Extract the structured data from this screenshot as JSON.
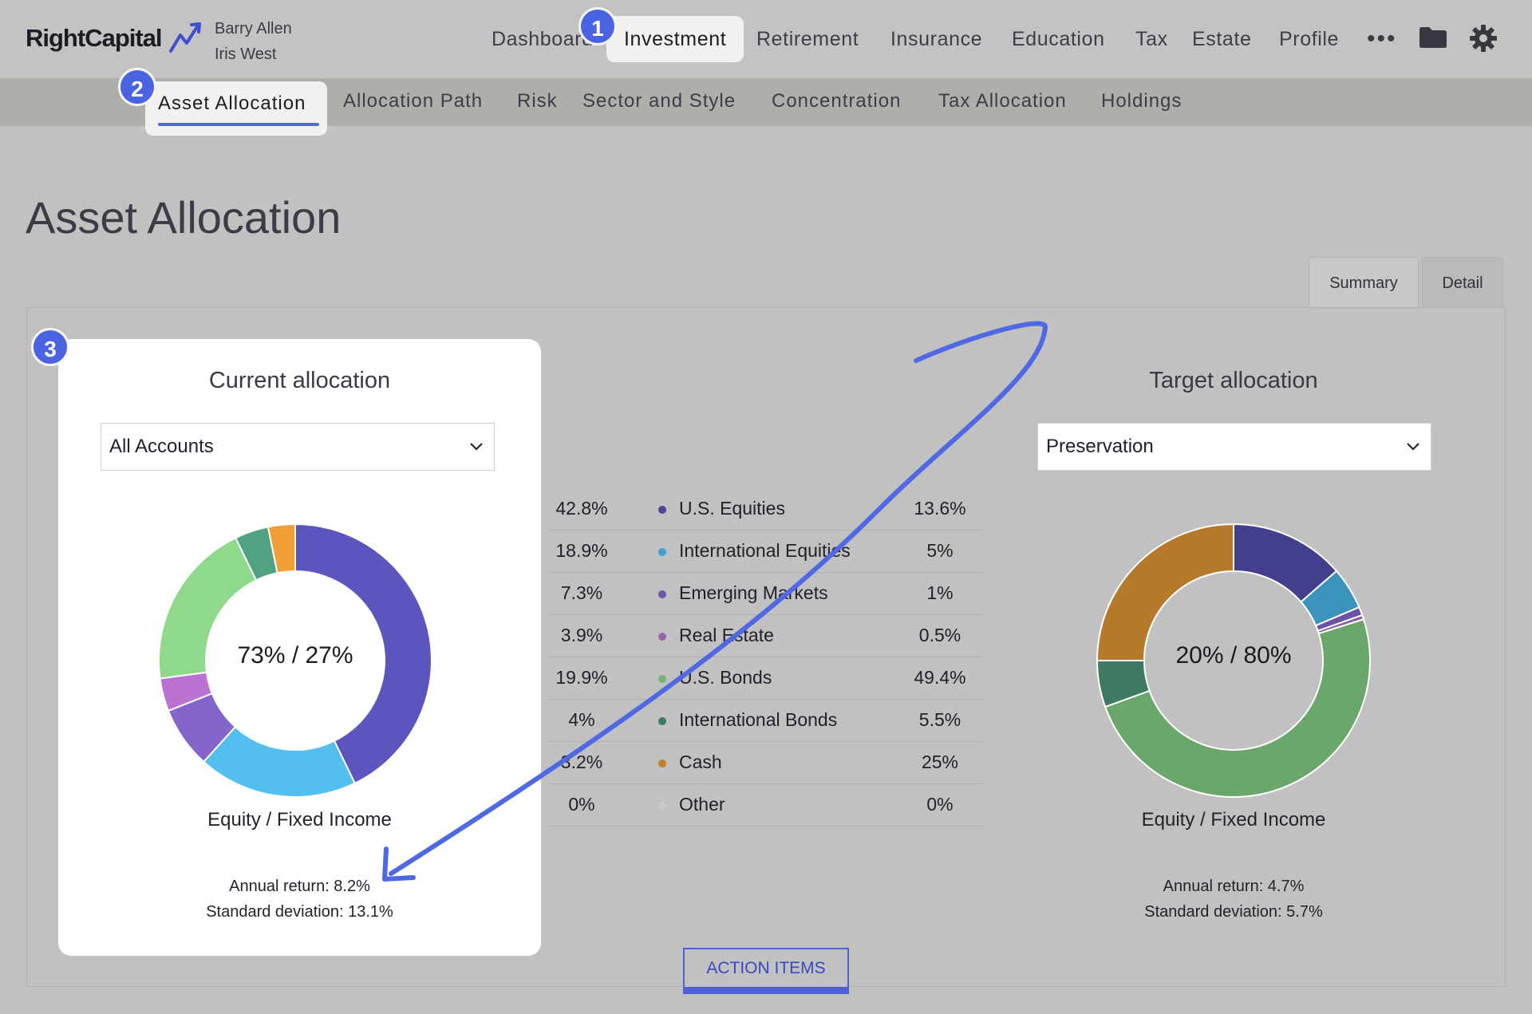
{
  "brand": {
    "name": "RightCapital"
  },
  "clients": [
    "Barry Allen",
    "Iris West"
  ],
  "nav": {
    "items": [
      "Dashboard",
      "Investment",
      "Retirement",
      "Insurance",
      "Education",
      "Tax",
      "Estate",
      "Profile"
    ],
    "active": "Investment",
    "more_icon": "•••",
    "icons": [
      "folder-icon",
      "gear-icon"
    ]
  },
  "subnav": {
    "items": [
      "Asset Allocation",
      "Allocation Path",
      "Risk",
      "Sector and Style",
      "Concentration",
      "Tax Allocation",
      "Holdings"
    ],
    "active": "Asset Allocation"
  },
  "badges": [
    "1",
    "2",
    "3"
  ],
  "page": {
    "title": "Asset Allocation"
  },
  "tabs": {
    "summary": "Summary",
    "detail": "Detail",
    "active": "Summary"
  },
  "current": {
    "title": "Current allocation",
    "select_value": "All Accounts",
    "center_label": "73% / 27%",
    "caption": "Equity / Fixed Income",
    "annual_return": "Annual return: 8.2%",
    "std_dev": "Standard deviation: 13.1%"
  },
  "target": {
    "title": "Target allocation",
    "select_value": "Preservation",
    "center_label": "20% / 80%",
    "caption": "Equity / Fixed Income",
    "annual_return": "Annual return: 4.7%",
    "std_dev": "Standard deviation: 5.7%"
  },
  "legend": [
    {
      "current": "42.8%",
      "name": "U.S. Equities",
      "target": "13.6%"
    },
    {
      "current": "18.9%",
      "name": "International Equities",
      "target": "5%"
    },
    {
      "current": "7.3%",
      "name": "Emerging Markets",
      "target": "1%"
    },
    {
      "current": "3.9%",
      "name": "Real Estate",
      "target": "0.5%"
    },
    {
      "current": "19.9%",
      "name": "U.S. Bonds",
      "target": "49.4%"
    },
    {
      "current": "4%",
      "name": "International Bonds",
      "target": "5.5%"
    },
    {
      "current": "3.2%",
      "name": "Cash",
      "target": "25%"
    },
    {
      "current": "0%",
      "name": "Other",
      "target": "0%"
    }
  ],
  "chart_data": [
    {
      "type": "pie",
      "title": "Current allocation",
      "categories": [
        "U.S. Equities",
        "International Equities",
        "Emerging Markets",
        "Real Estate",
        "U.S. Bonds",
        "International Bonds",
        "Cash",
        "Other"
      ],
      "values": [
        42.8,
        18.9,
        7.3,
        3.9,
        19.9,
        4,
        3.2,
        0
      ],
      "colors": [
        "#5b55bd",
        "#53bfee",
        "#8565cb",
        "#ba73d1",
        "#8fd98b",
        "#4fa381",
        "#f19e36",
        "#b9b9b9"
      ]
    },
    {
      "type": "pie",
      "title": "Target allocation",
      "categories": [
        "U.S. Equities",
        "International Equities",
        "Emerging Markets",
        "Real Estate",
        "U.S. Bonds",
        "International Bonds",
        "Cash",
        "Other"
      ],
      "values": [
        13.6,
        5,
        1,
        0.5,
        49.4,
        5.5,
        25,
        0
      ],
      "colors": [
        "#433f8e",
        "#3a93bb",
        "#6a53a4",
        "#8d5c9e",
        "#6aa76a",
        "#3f7a63",
        "#b57a2c",
        "#a8a8a8"
      ]
    }
  ],
  "legend_dot_colors": [
    "#4a4597",
    "#3f9fcb",
    "#6f56ac",
    "#9a64ad",
    "#73b573",
    "#3f7a63",
    "#c27e2b",
    "#c8c8c8"
  ],
  "action_button": "ACTION ITEMS"
}
